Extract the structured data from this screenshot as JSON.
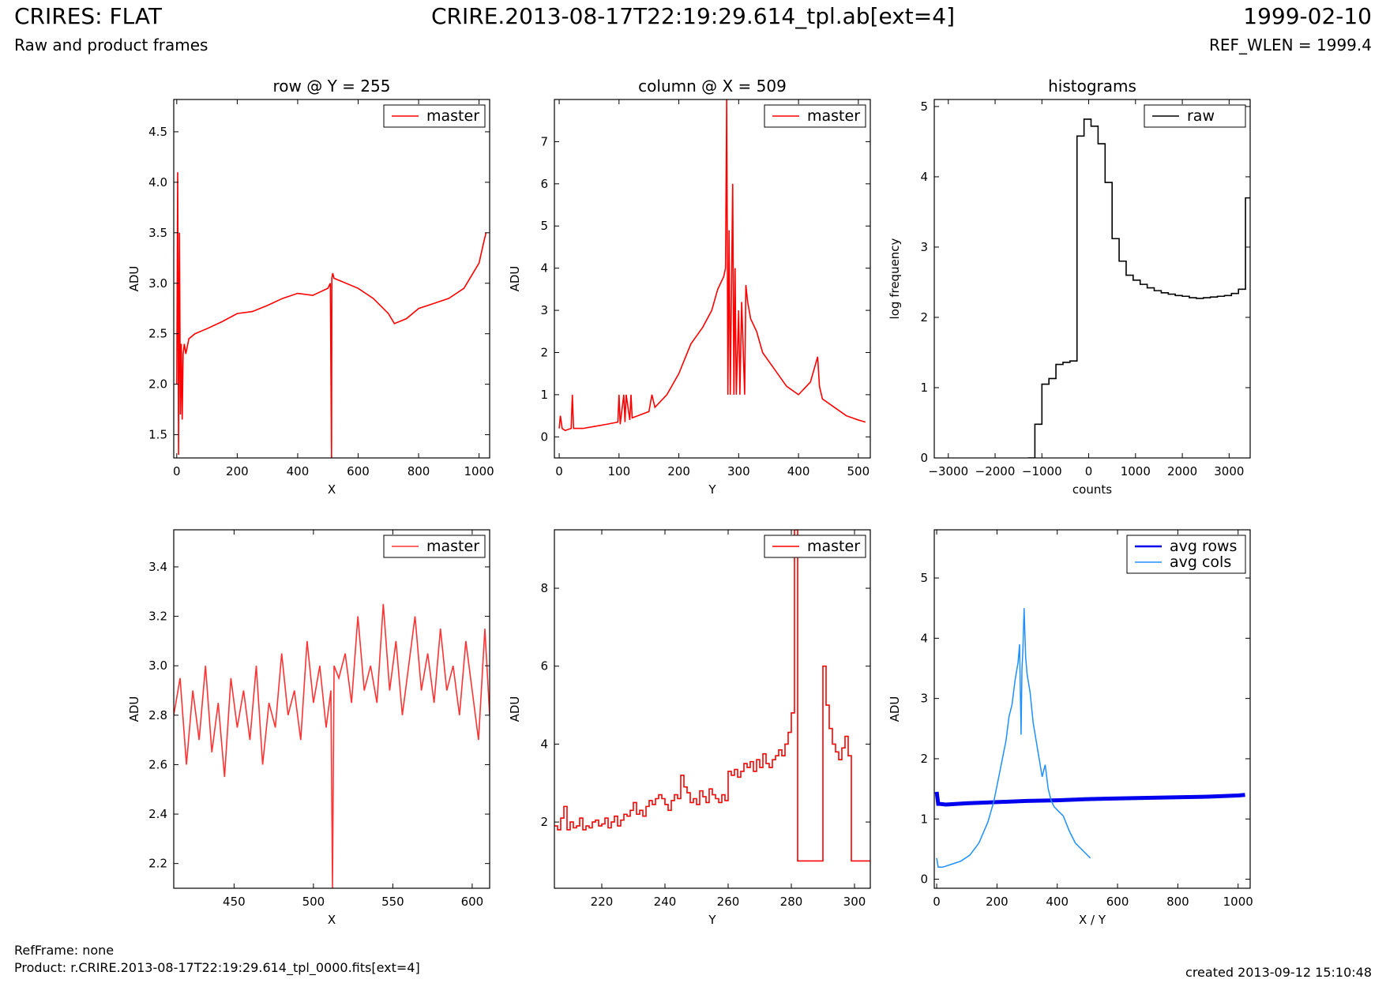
{
  "header": {
    "title_left": "CRIRES: FLAT",
    "subtitle_left": "Raw and product frames",
    "title_center": "CRIRE.2013-08-17T22:19:29.614_tpl.ab[ext=4]",
    "title_right": "1999-02-10",
    "subtitle_right": "REF_WLEN = 1999.4"
  },
  "footer": {
    "ref_frame": "RefFrame: none",
    "product": "Product: r.CRIRE.2013-08-17T22:19:29.614_tpl_0000.fits[ext=4]",
    "created": "created 2013-09-12 15:10:48"
  },
  "colors": {
    "red": "#ff0000",
    "red_light": "#ff3333",
    "black": "#000000",
    "blue": "#0000ee",
    "lightblue": "#1e90ff"
  },
  "chart_data": [
    {
      "type": "line",
      "title": "row @ Y = 255",
      "xlabel": "X",
      "ylabel": "ADU",
      "xlim": [
        -10,
        1035
      ],
      "ylim": [
        1.27,
        4.82
      ],
      "xticks": [
        0,
        200,
        400,
        600,
        800,
        1000
      ],
      "yticks": [
        1.5,
        2.0,
        2.5,
        3.0,
        3.5,
        4.0,
        4.5
      ],
      "legend": "top-right",
      "series": [
        {
          "name": "master",
          "color": "#ff0000",
          "step": false,
          "x": [
            0,
            3,
            6,
            9,
            12,
            15,
            18,
            21,
            25,
            30,
            40,
            60,
            100,
            150,
            200,
            250,
            300,
            350,
            400,
            450,
            500,
            508,
            512,
            513,
            516,
            520,
            560,
            600,
            650,
            700,
            720,
            760,
            800,
            850,
            900,
            950,
            980,
            1000,
            1015,
            1023
          ],
          "y": [
            2.0,
            4.1,
            1.3,
            3.5,
            1.7,
            2.4,
            1.65,
            2.3,
            2.4,
            2.3,
            2.45,
            2.5,
            2.55,
            2.62,
            2.7,
            2.72,
            2.78,
            2.85,
            2.9,
            2.88,
            2.95,
            3.0,
            1.27,
            3.05,
            3.1,
            3.05,
            3.0,
            2.95,
            2.85,
            2.7,
            2.6,
            2.65,
            2.75,
            2.8,
            2.85,
            2.95,
            3.1,
            3.2,
            3.4,
            3.5
          ]
        }
      ]
    },
    {
      "type": "line",
      "title": "column @ X = 509",
      "xlabel": "Y",
      "ylabel": "ADU",
      "xlim": [
        -8,
        520
      ],
      "ylim": [
        -0.5,
        8.0
      ],
      "xticks": [
        0,
        100,
        200,
        300,
        400,
        500
      ],
      "yticks": [
        0,
        1,
        2,
        3,
        4,
        5,
        6,
        7
      ],
      "legend": "top-right",
      "series": [
        {
          "name": "master",
          "color": "#ff0000",
          "step": false,
          "x": [
            0,
            2,
            5,
            10,
            20,
            22,
            24,
            40,
            60,
            80,
            98,
            100,
            102,
            108,
            110,
            112,
            118,
            120,
            122,
            150,
            155,
            160,
            180,
            200,
            220,
            240,
            255,
            265,
            275,
            278,
            280,
            282,
            284,
            286,
            290,
            292,
            294,
            296,
            300,
            302,
            305,
            310,
            312,
            315,
            320,
            330,
            340,
            360,
            380,
            400,
            420,
            432,
            435,
            440,
            460,
            480,
            500,
            512
          ],
          "y": [
            0.2,
            0.5,
            0.2,
            0.15,
            0.2,
            1.0,
            0.2,
            0.2,
            0.25,
            0.3,
            0.35,
            1.0,
            0.3,
            1.0,
            0.35,
            1.0,
            0.4,
            1.0,
            0.45,
            0.6,
            1.0,
            0.7,
            1.0,
            1.5,
            2.2,
            2.6,
            3.0,
            3.5,
            3.8,
            4.0,
            8.0,
            1.0,
            4.9,
            1.0,
            6.0,
            1.0,
            4.0,
            1.0,
            3.0,
            1.0,
            3.2,
            1.0,
            3.6,
            3.2,
            2.8,
            2.5,
            2.0,
            1.6,
            1.2,
            1.0,
            1.3,
            1.9,
            1.2,
            0.9,
            0.7,
            0.5,
            0.4,
            0.35
          ]
        }
      ]
    },
    {
      "type": "line",
      "title": "histograms",
      "xlabel": "counts",
      "ylabel": "log frequency",
      "xlim": [
        -3300,
        3450
      ],
      "ylim": [
        0,
        5.1
      ],
      "xticks": [
        -3000,
        -2000,
        -1000,
        0,
        1000,
        2000,
        3000
      ],
      "yticks": [
        0,
        1,
        2,
        3,
        4,
        5
      ],
      "legend": "top-right",
      "series": [
        {
          "name": "raw",
          "color": "#000000",
          "step": true,
          "x": [
            -1300,
            -1150,
            -1000,
            -850,
            -700,
            -550,
            -400,
            -250,
            -100,
            50,
            200,
            350,
            500,
            650,
            800,
            950,
            1100,
            1250,
            1400,
            1550,
            1700,
            1850,
            2000,
            2150,
            2300,
            2450,
            2600,
            2750,
            2900,
            3050,
            3200,
            3350,
            3450
          ],
          "y": [
            0,
            0.48,
            1.05,
            1.13,
            1.33,
            1.36,
            1.38,
            4.58,
            4.82,
            4.72,
            4.47,
            3.92,
            3.12,
            2.8,
            2.6,
            2.53,
            2.47,
            2.42,
            2.38,
            2.35,
            2.33,
            2.31,
            2.3,
            2.28,
            2.27,
            2.28,
            2.29,
            2.3,
            2.31,
            2.34,
            2.4,
            3.7,
            3.7
          ]
        }
      ]
    },
    {
      "type": "line",
      "xlabel": "X",
      "ylabel": "ADU",
      "xlim": [
        412,
        611
      ],
      "ylim": [
        2.1,
        3.55
      ],
      "xticks": [
        450,
        500,
        550,
        600
      ],
      "yticks": [
        2.2,
        2.4,
        2.6,
        2.8,
        3.0,
        3.2,
        3.4
      ],
      "legend": "top-right",
      "series": [
        {
          "name": "master",
          "color": "#ff3333",
          "step": false,
          "x": [
            412,
            416,
            420,
            424,
            428,
            432,
            436,
            440,
            444,
            448,
            452,
            456,
            460,
            464,
            468,
            472,
            476,
            480,
            484,
            488,
            492,
            496,
            500,
            504,
            508,
            511,
            512,
            513,
            516,
            520,
            524,
            528,
            532,
            536,
            540,
            544,
            548,
            552,
            556,
            560,
            564,
            568,
            572,
            576,
            580,
            584,
            588,
            592,
            596,
            600,
            604,
            608,
            611
          ],
          "y": [
            2.8,
            2.95,
            2.6,
            2.9,
            2.7,
            3.0,
            2.65,
            2.85,
            2.55,
            2.95,
            2.75,
            2.9,
            2.7,
            3.0,
            2.6,
            2.85,
            2.75,
            3.05,
            2.8,
            2.9,
            2.7,
            3.1,
            2.85,
            3.0,
            2.75,
            2.9,
            2.1,
            3.0,
            2.95,
            3.05,
            2.85,
            3.2,
            2.9,
            3.0,
            2.85,
            3.25,
            2.9,
            3.1,
            2.8,
            3.0,
            3.2,
            2.9,
            3.05,
            2.85,
            3.15,
            2.9,
            3.0,
            2.8,
            3.1,
            2.9,
            2.7,
            3.15,
            2.8
          ]
        }
      ]
    },
    {
      "type": "line",
      "xlabel": "Y",
      "ylabel": "ADU",
      "xlim": [
        205,
        305
      ],
      "ylim": [
        0.3,
        9.5
      ],
      "xticks": [
        220,
        240,
        260,
        280,
        300
      ],
      "yticks": [
        2,
        4,
        6,
        8
      ],
      "legend": "top-right",
      "series": [
        {
          "name": "master",
          "color": "#ff0000",
          "step": true,
          "x": [
            205,
            206,
            207,
            208,
            209,
            210,
            211,
            212,
            213,
            214,
            215,
            216,
            217,
            218,
            219,
            220,
            221,
            222,
            223,
            224,
            225,
            226,
            227,
            228,
            229,
            230,
            231,
            232,
            233,
            234,
            235,
            236,
            237,
            238,
            239,
            240,
            241,
            242,
            243,
            244,
            245,
            246,
            247,
            248,
            249,
            250,
            251,
            252,
            253,
            254,
            255,
            256,
            257,
            258,
            259,
            260,
            261,
            262,
            263,
            264,
            265,
            266,
            267,
            268,
            269,
            270,
            271,
            272,
            273,
            274,
            275,
            276,
            277,
            278,
            279,
            280,
            281,
            282,
            283,
            284,
            285,
            286,
            287,
            288,
            289,
            290,
            291,
            292,
            293,
            294,
            295,
            296,
            297,
            298,
            299,
            300,
            301,
            302,
            303,
            304,
            305
          ],
          "y": [
            1.9,
            1.8,
            2.1,
            2.4,
            1.8,
            2.0,
            1.85,
            1.9,
            2.1,
            1.8,
            1.9,
            1.85,
            2.0,
            2.05,
            1.9,
            1.95,
            2.1,
            1.85,
            2.0,
            2.15,
            1.9,
            2.05,
            2.2,
            2.15,
            2.3,
            2.5,
            2.2,
            2.3,
            2.15,
            2.4,
            2.55,
            2.45,
            2.6,
            2.7,
            2.6,
            2.45,
            2.3,
            2.55,
            2.7,
            2.6,
            3.2,
            2.9,
            2.75,
            2.5,
            2.6,
            2.45,
            2.8,
            2.65,
            2.5,
            2.85,
            2.7,
            2.6,
            2.5,
            2.7,
            2.55,
            3.3,
            3.2,
            3.35,
            3.15,
            3.3,
            3.5,
            3.4,
            3.55,
            3.3,
            3.6,
            3.4,
            3.75,
            3.5,
            3.4,
            3.6,
            3.7,
            3.85,
            3.7,
            4.0,
            4.3,
            4.8,
            9.5,
            1.0,
            1.0,
            1.0,
            1.0,
            1.0,
            1.0,
            1.0,
            1.0,
            6.0,
            5.0,
            4.4,
            4.0,
            3.8,
            3.6,
            3.9,
            4.2,
            3.7,
            1.0,
            1.0,
            1.0,
            1.0,
            1.0,
            1.0,
            1.0
          ]
        }
      ]
    },
    {
      "type": "line",
      "xlabel": "X / Y",
      "ylabel": "ADU",
      "xlim": [
        -8,
        1040
      ],
      "ylim": [
        -0.15,
        5.8
      ],
      "xticks": [
        0,
        200,
        400,
        600,
        800,
        1000
      ],
      "yticks": [
        0,
        1,
        2,
        3,
        4,
        5
      ],
      "legend": "top-right",
      "series": [
        {
          "name": "avg rows",
          "color": "#0000ee",
          "step": false,
          "width": 5,
          "x": [
            0,
            5,
            10,
            30,
            100,
            200,
            300,
            400,
            500,
            600,
            700,
            800,
            900,
            1000,
            1023
          ],
          "y": [
            1.45,
            1.25,
            1.25,
            1.24,
            1.26,
            1.28,
            1.3,
            1.31,
            1.33,
            1.34,
            1.35,
            1.36,
            1.37,
            1.39,
            1.4
          ]
        },
        {
          "name": "avg cols",
          "color": "#1e90ff",
          "step": false,
          "width": 1.5,
          "x": [
            0,
            5,
            20,
            50,
            80,
            110,
            140,
            170,
            190,
            210,
            230,
            240,
            250,
            260,
            270,
            275,
            280,
            283,
            286,
            290,
            295,
            300,
            310,
            320,
            330,
            340,
            350,
            360,
            370,
            380,
            390,
            400,
            420,
            440,
            460,
            480,
            500,
            510
          ],
          "y": [
            0.35,
            0.2,
            0.2,
            0.25,
            0.3,
            0.4,
            0.6,
            0.95,
            1.3,
            1.8,
            2.3,
            2.7,
            2.9,
            3.3,
            3.6,
            3.9,
            2.4,
            3.5,
            3.8,
            4.5,
            3.7,
            3.4,
            3.1,
            2.6,
            2.3,
            2.0,
            1.7,
            1.9,
            1.5,
            1.3,
            1.2,
            1.15,
            1.05,
            0.8,
            0.6,
            0.5,
            0.4,
            0.35
          ]
        }
      ]
    }
  ]
}
